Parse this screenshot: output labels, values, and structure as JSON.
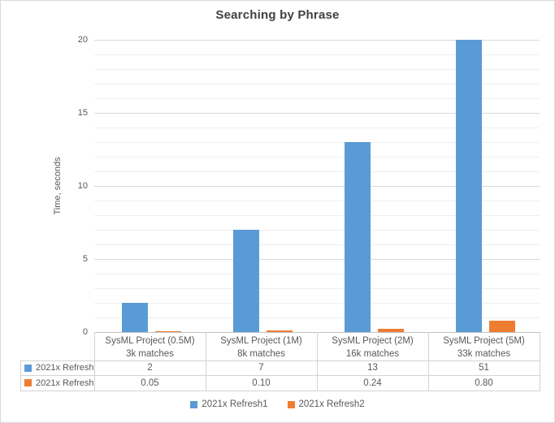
{
  "chart_data": {
    "type": "bar",
    "title": "Searching by Phrase",
    "xlabel": "",
    "ylabel": "Time, seconds",
    "ylim": [
      0,
      20
    ],
    "yticks": [
      0,
      5,
      10,
      15,
      20
    ],
    "minor_grid_step": 1,
    "major_grid_step": 5,
    "grid": true,
    "legend_position": "bottom",
    "data_table_shown": true,
    "note": "Last Refresh1 bar (51) is clipped at axis max 20",
    "categories": [
      {
        "label": "SysML Project (0.5M)",
        "sublabel": "3k matches"
      },
      {
        "label": "SysML Project (1M)",
        "sublabel": "8k matches"
      },
      {
        "label": "SysML Project (2M)",
        "sublabel": "16k matches"
      },
      {
        "label": "SysML Project (5M)",
        "sublabel": "33k matches"
      }
    ],
    "series": [
      {
        "name": "2021x Refresh1",
        "color": "#5B9BD5",
        "values": [
          2,
          7,
          13,
          51
        ],
        "display": [
          "2",
          "7",
          "13",
          "51"
        ]
      },
      {
        "name": "2021x Refresh2",
        "color": "#ED7D31",
        "values": [
          0.05,
          0.1,
          0.24,
          0.8
        ],
        "display": [
          "0.05",
          "0.10",
          "0.24",
          "0.80"
        ]
      }
    ]
  },
  "colors": {
    "major_gridline": "#d9d9d9",
    "minor_gridline": "#efefef",
    "axis_line": "#c3c3c3",
    "table_border": "#d3d3d3",
    "title_text": "#404040",
    "body_text": "#595959"
  }
}
